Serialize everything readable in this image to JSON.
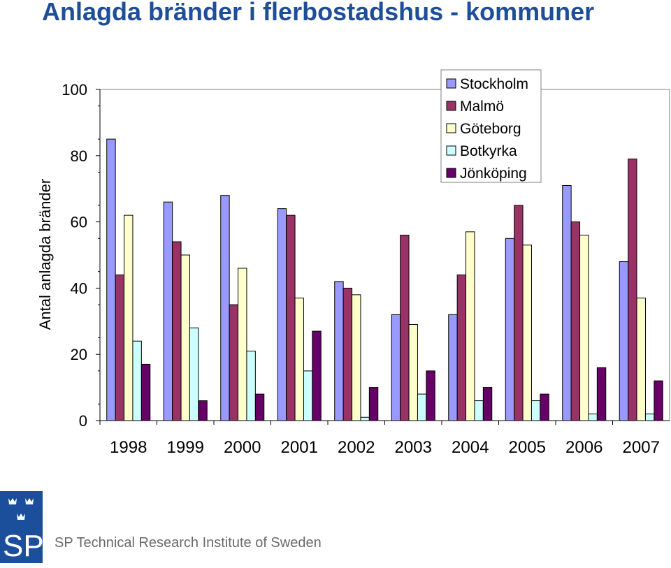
{
  "title": "Anlagda bränder i flerbostadshus - kommuner",
  "chart_data": {
    "type": "bar",
    "title": "Anlagda bränder i flerbostadshus - kommuner",
    "xlabel": "",
    "ylabel": "Antal anlagda bränder",
    "ylim": [
      0,
      100
    ],
    "yticks": [
      0,
      20,
      40,
      60,
      80,
      100
    ],
    "grid": false,
    "legend": "top-right",
    "categories": [
      "1998",
      "1999",
      "2000",
      "2001",
      "2002",
      "2003",
      "2004",
      "2005",
      "2006",
      "2007"
    ],
    "series": [
      {
        "name": "Stockholm",
        "color": "#9999ff",
        "values": [
          85,
          66,
          68,
          64,
          42,
          32,
          32,
          55,
          71,
          48
        ]
      },
      {
        "name": "Malmö",
        "color": "#993366",
        "values": [
          44,
          54,
          35,
          62,
          40,
          56,
          44,
          65,
          60,
          79
        ]
      },
      {
        "name": "Göteborg",
        "color": "#ffffcc",
        "values": [
          62,
          50,
          46,
          37,
          38,
          29,
          57,
          53,
          56,
          37
        ]
      },
      {
        "name": "Botkyrka",
        "color": "#ccffff",
        "values": [
          24,
          28,
          21,
          15,
          1,
          8,
          6,
          6,
          2,
          2
        ]
      },
      {
        "name": "Jönköping",
        "color": "#660066",
        "values": [
          17,
          6,
          8,
          27,
          10,
          15,
          10,
          8,
          16,
          12
        ]
      }
    ]
  },
  "footer": {
    "logo_letters": "SP",
    "organization": "SP Technical Research Institute of Sweden"
  }
}
